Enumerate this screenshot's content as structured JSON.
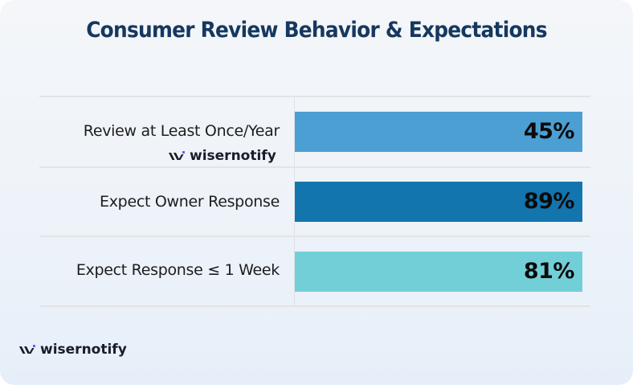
{
  "chart_data": {
    "type": "bar",
    "orientation": "horizontal",
    "title": "Consumer Review Behavior & Expectations",
    "categories": [
      "Review at Least Once/Year",
      "Expect Owner Response",
      "Expect Response ≤ 1 Week"
    ],
    "values": [
      45,
      89,
      81
    ],
    "value_labels": [
      "45%",
      "89%",
      "81%"
    ],
    "unit": "%",
    "bar_colors": [
      "#4b9fd3",
      "#1275ad",
      "#72cfd8"
    ],
    "bars_equal_length": true,
    "xlabel": "",
    "ylabel": "",
    "grid": false,
    "legend": "none"
  },
  "colors": {
    "title": "#16385f",
    "logo_accent": "#6b5cf6",
    "logo_text": "#1b1b2b"
  },
  "watermarks": {
    "inline_brand": "wisernotify",
    "footer_brand": "wisernotify"
  }
}
